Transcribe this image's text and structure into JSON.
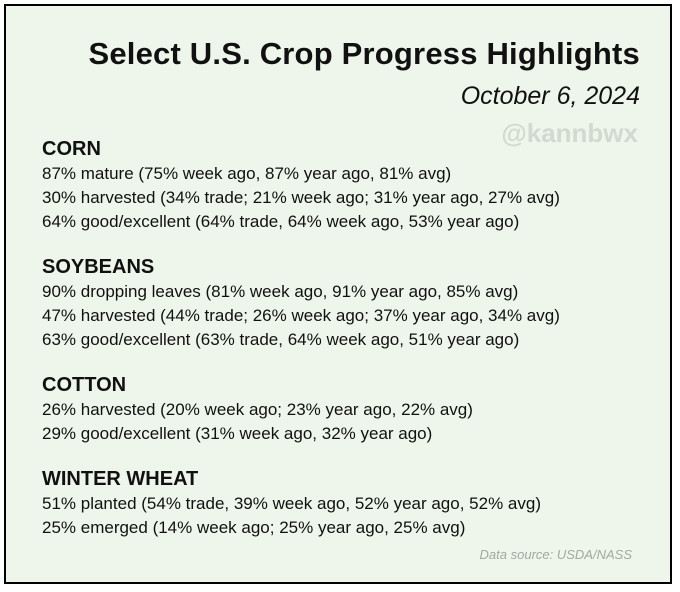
{
  "header": {
    "title": "Select U.S. Crop Progress Highlights",
    "date": "October 6, 2024",
    "watermark": "@kannbwx"
  },
  "sections": [
    {
      "title": "CORN",
      "lines": [
        "87% mature (75% week ago, 87% year ago, 81% avg)",
        "30% harvested (34% trade; 21% week ago; 31% year ago, 27% avg)",
        "64% good/excellent (64% trade, 64% week ago, 53% year ago)"
      ]
    },
    {
      "title": "SOYBEANS",
      "lines": [
        "90% dropping leaves (81% week ago, 91% year ago, 85% avg)",
        "47% harvested (44% trade; 26% week ago; 37% year ago, 34% avg)",
        "63% good/excellent (63% trade, 64% week ago, 51% year ago)"
      ]
    },
    {
      "title": "COTTON",
      "lines": [
        "26% harvested (20% week ago; 23% year ago, 22% avg)",
        "29% good/excellent (31% week ago, 32% year ago)"
      ]
    },
    {
      "title": "WINTER WHEAT",
      "lines": [
        "51% planted (54% trade, 39% week ago, 52% year ago, 52% avg)",
        "25% emerged (14% week ago; 25% year ago, 25% avg)"
      ]
    }
  ],
  "footer": {
    "source": "Data source: USDA/NASS"
  },
  "colors": {
    "background": "#eef5ea",
    "border": "#000000",
    "watermark": "#d3d9d0",
    "source": "#a3a8a1"
  }
}
